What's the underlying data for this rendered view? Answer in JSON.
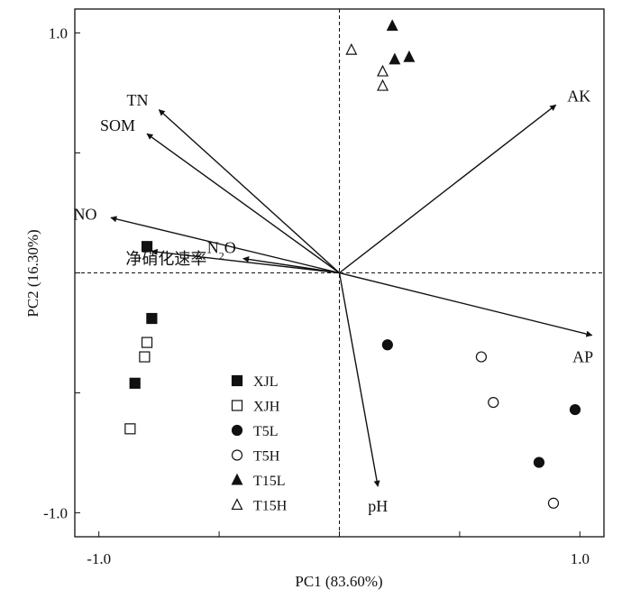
{
  "chart_data": {
    "type": "scatter",
    "subtype": "pca-biplot",
    "title": "",
    "xlabel": "PC1 (83.60%)",
    "ylabel": "PC2 (16.30%)",
    "xlim": [
      -1.1,
      1.1
    ],
    "ylim": [
      -1.1,
      1.1
    ],
    "xticks": [
      -1.0,
      -0.5,
      0,
      0.5,
      1.0
    ],
    "yticks": [
      1.0,
      0.5,
      0,
      -0.5,
      -1.0
    ],
    "xtick_labels": [
      "-1.0",
      "",
      "",
      "",
      "1.0"
    ],
    "ytick_labels": [
      "1.0",
      "",
      "",
      "",
      "-1.0"
    ],
    "grid": false,
    "reference_lines": [
      {
        "axis": "x",
        "value": 0,
        "style": "dashed"
      },
      {
        "axis": "y",
        "value": 0,
        "style": "dashed"
      }
    ],
    "legend_position": "bottom-left",
    "series": [
      {
        "name": "XJL",
        "marker": "square",
        "filled": true,
        "x": [
          -0.8,
          -0.78,
          -0.85
        ],
        "y": [
          0.11,
          -0.19,
          -0.46
        ]
      },
      {
        "name": "XJH",
        "marker": "square",
        "filled": false,
        "x": [
          -0.8,
          -0.81,
          -0.87
        ],
        "y": [
          -0.29,
          -0.35,
          -0.65
        ]
      },
      {
        "name": "T5L",
        "marker": "circle",
        "filled": true,
        "x": [
          0.2,
          0.98,
          0.83
        ],
        "y": [
          -0.3,
          -0.57,
          -0.79
        ]
      },
      {
        "name": "T5H",
        "marker": "circle",
        "filled": false,
        "x": [
          0.59,
          0.64,
          0.89
        ],
        "y": [
          -0.35,
          -0.54,
          -0.96
        ]
      },
      {
        "name": "T15L",
        "marker": "triangle",
        "filled": true,
        "x": [
          0.22,
          0.23,
          0.29
        ],
        "y": [
          1.03,
          0.89,
          0.9
        ]
      },
      {
        "name": "T15H",
        "marker": "triangle",
        "filled": false,
        "x": [
          0.05,
          0.18,
          0.18
        ],
        "y": [
          0.93,
          0.84,
          0.78
        ]
      }
    ],
    "vectors": [
      {
        "label": "TN",
        "x": -0.75,
        "y": 0.68
      },
      {
        "label": "SOM",
        "x": -0.8,
        "y": 0.58
      },
      {
        "label": "NO",
        "x": -0.95,
        "y": 0.23
      },
      {
        "label": "N2O",
        "label_main": "N",
        "label_sub": "2",
        "label_tail": "O",
        "x": -0.4,
        "y": 0.06
      },
      {
        "label": "净硝化速率",
        "x": -0.78,
        "y": 0.09
      },
      {
        "label": "AK",
        "x": 0.9,
        "y": 0.7
      },
      {
        "label": "AP",
        "x": 1.05,
        "y": -0.26
      },
      {
        "label": "pH",
        "x": 0.16,
        "y": -0.89
      }
    ]
  }
}
